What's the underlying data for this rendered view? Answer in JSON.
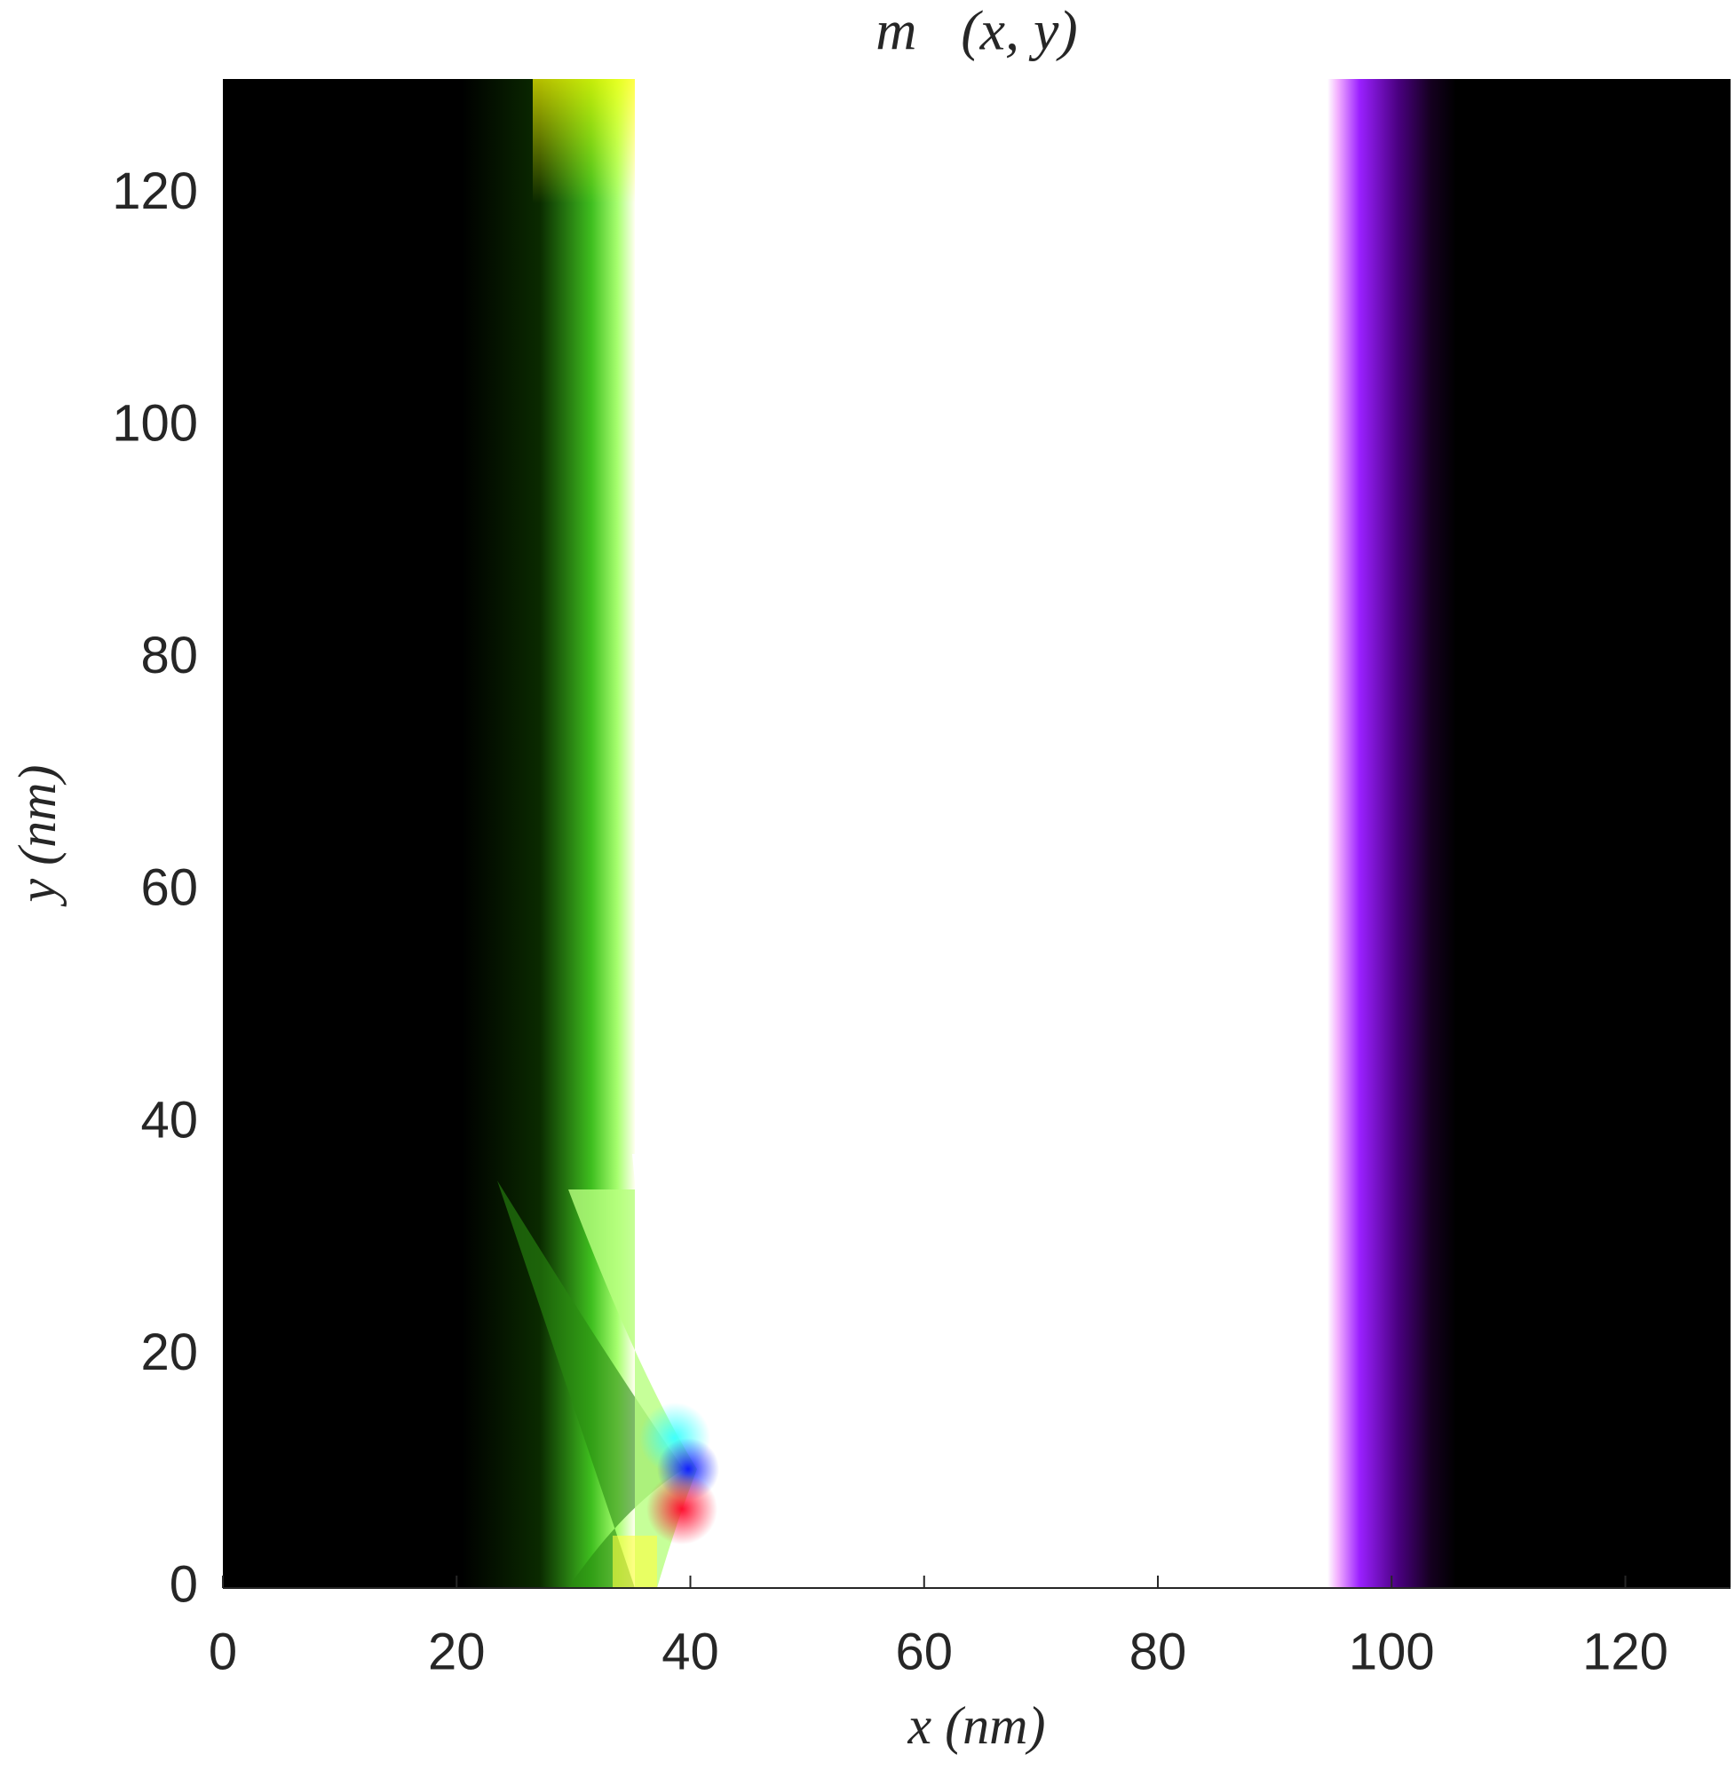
{
  "chart_data": {
    "type": "image",
    "title": "m⃗(x, y)",
    "xlabel": "x (nm)",
    "ylabel": "y (nm)",
    "xlim": [
      0,
      129
    ],
    "ylim": [
      0,
      130
    ],
    "xticks": [
      0,
      20,
      40,
      60,
      80,
      100,
      120
    ],
    "yticks": [
      0,
      20,
      40,
      60,
      80,
      100,
      120
    ]
  }
}
